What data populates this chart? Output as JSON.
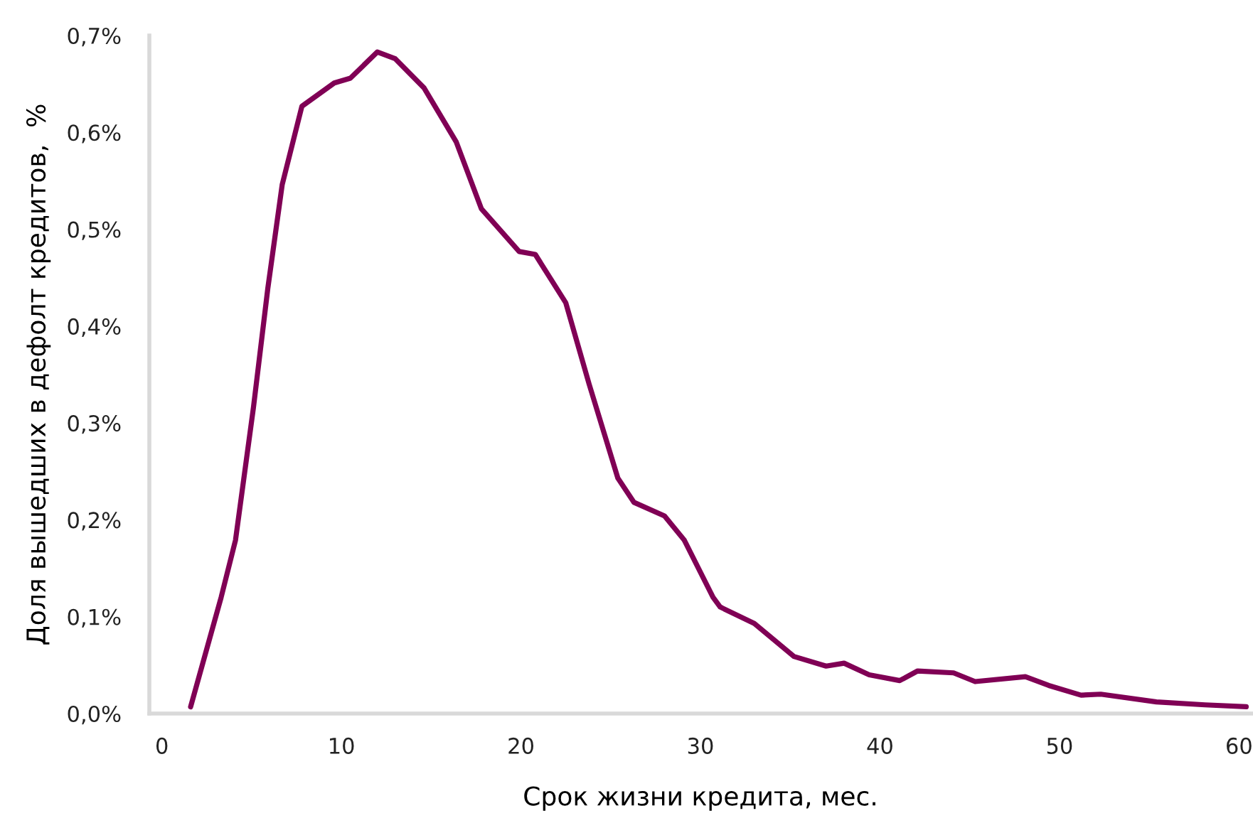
{
  "chart_data": {
    "type": "line",
    "xlabel": "Срок жизни кредита, мес.",
    "ylabel": "Доля вышедших в дефолт кредитов,  %",
    "series": [
      {
        "color": "#800055",
        "x": [
          1.6,
          3.3,
          4.1,
          5.1,
          5.9,
          6.7,
          7.8,
          9.6,
          10.5,
          12.0,
          13.0,
          14.6,
          16.4,
          17.8,
          19.9,
          20.8,
          22.5,
          23.8,
          25.4,
          26.3,
          28.0,
          29.1,
          30.7,
          31.1,
          33.0,
          35.2,
          37.0,
          38.0,
          39.4,
          41.1,
          42.1,
          44.1,
          45.3,
          48.1,
          49.4,
          51.2,
          52.3,
          55.4,
          58.1,
          60.4
        ],
        "values": [
          0.007,
          0.12,
          0.179,
          0.316,
          0.439,
          0.546,
          0.627,
          0.651,
          0.656,
          0.683,
          0.676,
          0.646,
          0.59,
          0.521,
          0.477,
          0.474,
          0.424,
          0.34,
          0.243,
          0.218,
          0.204,
          0.179,
          0.12,
          0.11,
          0.093,
          0.059,
          0.049,
          0.052,
          0.04,
          0.034,
          0.044,
          0.042,
          0.033,
          0.038,
          0.029,
          0.019,
          0.02,
          0.012,
          0.009,
          0.007
        ]
      }
    ],
    "xlim": [
      -0.7,
      60.7
    ],
    "xticks": [
      0,
      10,
      20,
      30,
      40,
      50,
      60
    ],
    "ylim": [
      0,
      0.7
    ],
    "yticks": [
      {
        "value": 0,
        "label": "0,0%"
      },
      {
        "value": 0.1,
        "label": "0,1%"
      },
      {
        "value": 0.2,
        "label": "0,2%"
      },
      {
        "value": 0.3,
        "label": "0,3%"
      },
      {
        "value": 0.4,
        "label": "0,4%"
      },
      {
        "value": 0.5,
        "label": "0,5%"
      },
      {
        "value": 0.6,
        "label": "0,6%"
      },
      {
        "value": 0.7,
        "label": "0,7%"
      }
    ],
    "grid": false,
    "legend": false,
    "marker": "none",
    "line_style": "solid"
  }
}
